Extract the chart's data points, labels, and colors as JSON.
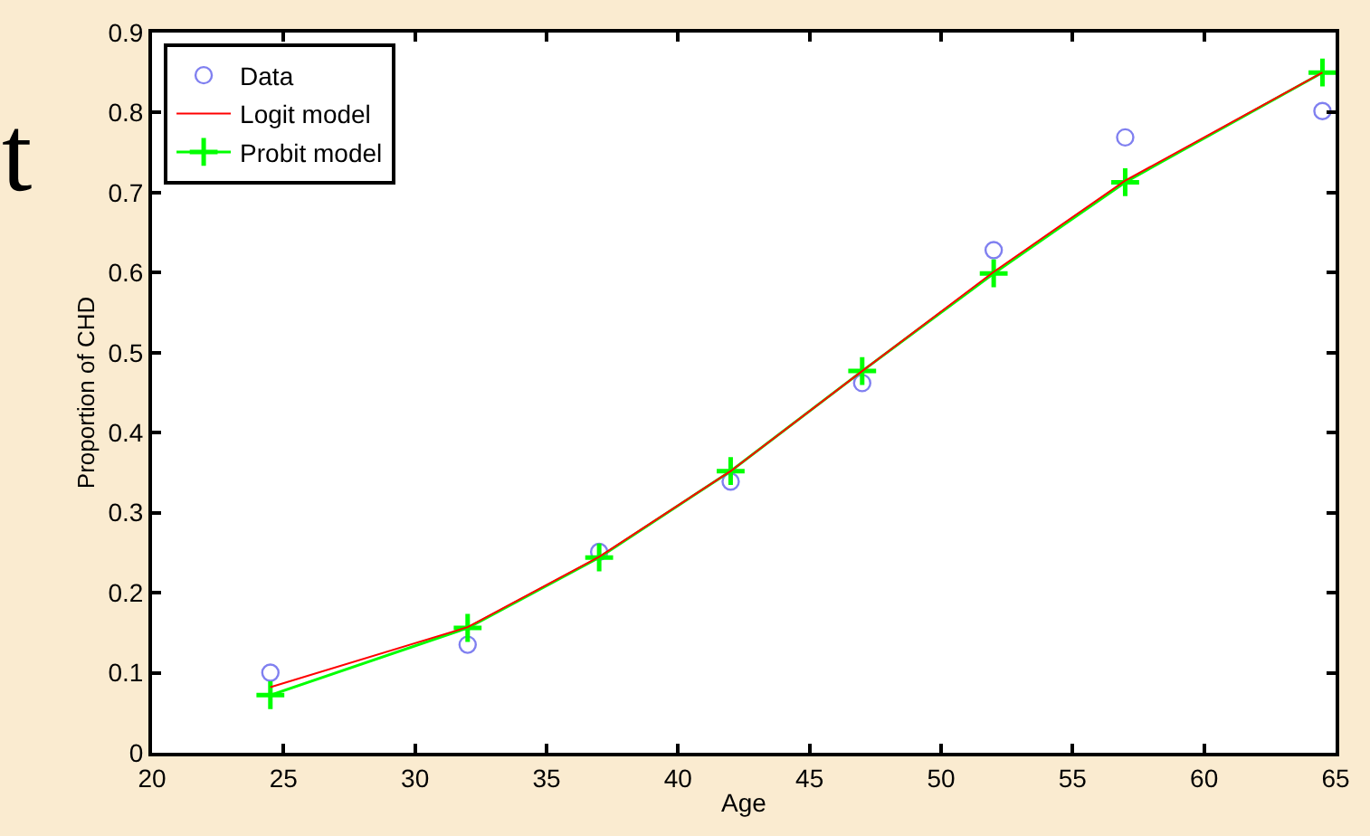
{
  "chart_data": {
    "type": "line",
    "xlabel": "Age",
    "ylabel": "Proportion of CHD",
    "annotations": [
      "t"
    ],
    "x": [
      24.5,
      32,
      37,
      42,
      47,
      52,
      57,
      64.5
    ],
    "series": [
      {
        "name": "Data",
        "type": "scatter",
        "marker": "circle",
        "color": "#8080f0",
        "values": [
          0.1,
          0.135,
          0.251,
          0.339,
          0.462,
          0.628,
          0.769,
          0.802
        ]
      },
      {
        "name": "Logit model",
        "marker": "none",
        "color": "#ff0000",
        "values": [
          0.082,
          0.157,
          0.245,
          0.352,
          0.477,
          0.601,
          0.715,
          0.85
        ]
      },
      {
        "name": "Probit model",
        "marker": "cross",
        "color": "#00ff00",
        "values": [
          0.072,
          0.156,
          0.244,
          0.352,
          0.477,
          0.599,
          0.713,
          0.85
        ]
      }
    ],
    "xlim": [
      20,
      65
    ],
    "xticks": [
      20,
      25,
      30,
      35,
      40,
      45,
      50,
      55,
      60,
      65
    ],
    "ylim": [
      0,
      0.9
    ],
    "yticks": [
      0,
      0.1,
      0.2,
      0.3,
      0.4,
      0.5,
      0.6,
      0.7,
      0.8,
      0.9
    ],
    "grid": false,
    "legend": "top left"
  }
}
